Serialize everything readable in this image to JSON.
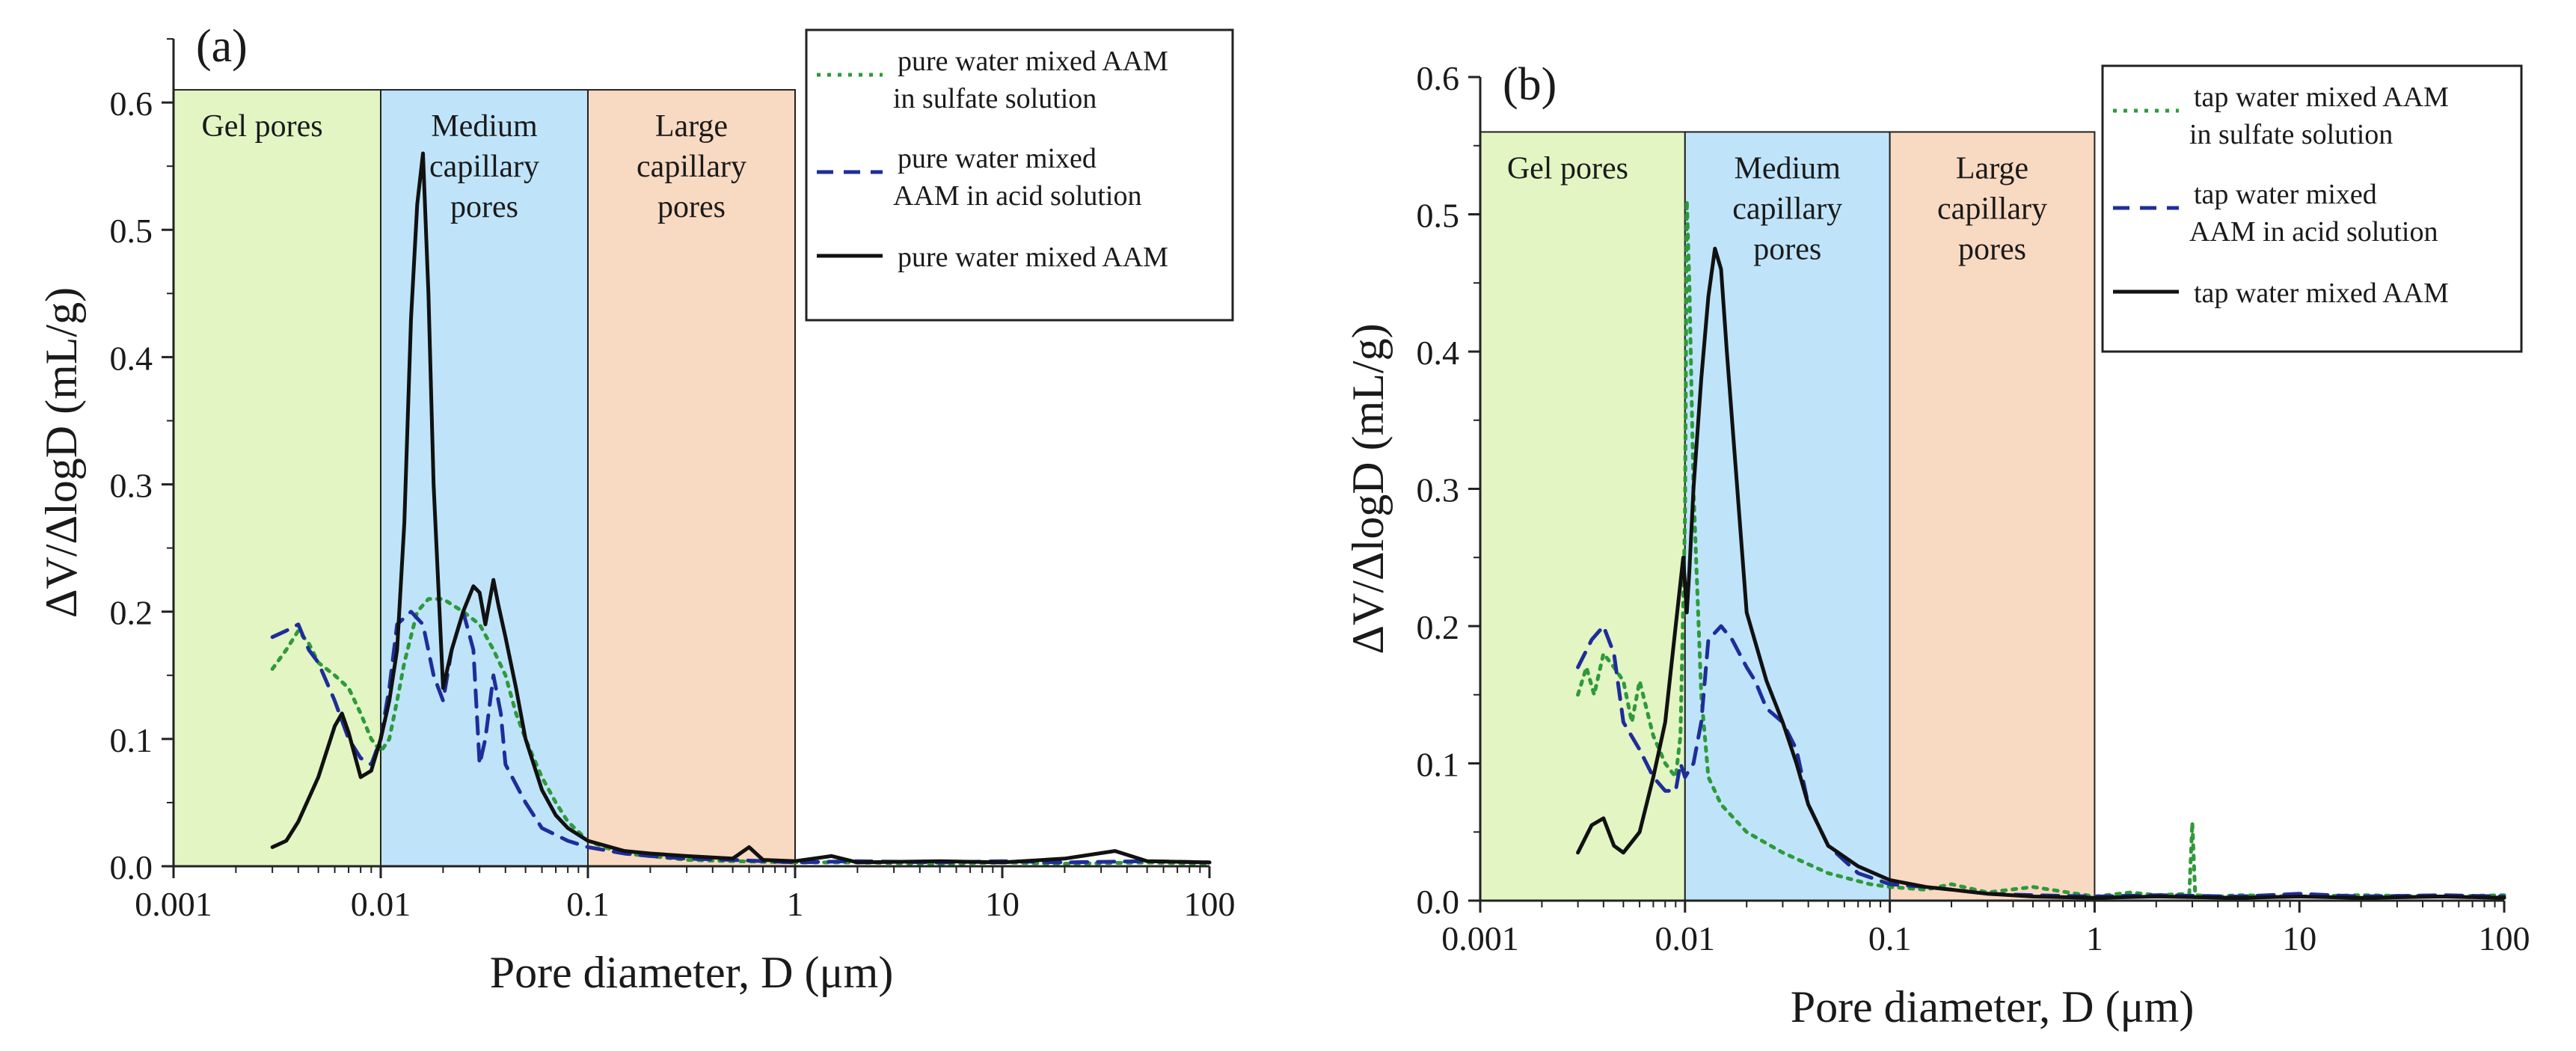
{
  "chart_data": [
    {
      "type": "line",
      "panel_label": "(a)",
      "title": "",
      "xlabel": "Pore diameter, D (μm)",
      "ylabel": "ΔV/ΔlogD (mL/g)",
      "xscale": "log",
      "xlim": [
        0.001,
        100
      ],
      "ylim": [
        0,
        0.65
      ],
      "xticks": [
        0.001,
        0.01,
        0.1,
        1,
        10,
        100
      ],
      "xtick_labels": [
        "0.001",
        "0.01",
        "0.1",
        "1",
        "10",
        "100"
      ],
      "yticks": [
        0.0,
        0.1,
        0.2,
        0.3,
        0.4,
        0.5,
        0.6
      ],
      "ytick_labels": [
        "0.0",
        "0.1",
        "0.2",
        "0.3",
        "0.4",
        "0.5",
        "0.6"
      ],
      "regions_top": 0.61,
      "regions": [
        {
          "label_lines": [
            "Gel pores"
          ],
          "x_range": [
            0.001,
            0.01
          ],
          "color": "#e2f5c3"
        },
        {
          "label_lines": [
            "Medium",
            "capillary",
            "pores"
          ],
          "x_range": [
            0.01,
            0.1
          ],
          "color": "#bfe4fa"
        },
        {
          "label_lines": [
            "Large",
            "capillary",
            "pores"
          ],
          "x_range": [
            0.1,
            1
          ],
          "color": "#f8d9c1"
        }
      ],
      "legend": "top-right",
      "series": [
        {
          "name": "pure water mixed AAM in sulfate solution",
          "legend_lines": [
            "pure water mixed AAM",
            "in sulfate solution"
          ],
          "style": "dotted",
          "color": "#2e9a3a",
          "x": [
            0.003,
            0.0035,
            0.004,
            0.0045,
            0.005,
            0.006,
            0.007,
            0.008,
            0.009,
            0.01,
            0.011,
            0.012,
            0.013,
            0.015,
            0.017,
            0.02,
            0.025,
            0.03,
            0.035,
            0.04,
            0.045,
            0.05,
            0.06,
            0.07,
            0.08,
            0.1,
            0.12,
            0.15,
            0.2,
            0.3,
            0.5,
            1,
            2,
            5,
            10,
            20,
            50,
            100
          ],
          "y": [
            0.155,
            0.17,
            0.185,
            0.175,
            0.16,
            0.15,
            0.14,
            0.12,
            0.1,
            0.09,
            0.1,
            0.13,
            0.16,
            0.2,
            0.21,
            0.21,
            0.2,
            0.19,
            0.17,
            0.15,
            0.12,
            0.1,
            0.07,
            0.05,
            0.035,
            0.02,
            0.015,
            0.01,
            0.008,
            0.005,
            0.004,
            0.003,
            0.003,
            0.002,
            0.003,
            0.002,
            0.003,
            0.002
          ]
        },
        {
          "name": "pure water mixed AAM in acid solution",
          "legend_lines": [
            "pure water mixed",
            "AAM in acid solution"
          ],
          "style": "dashed",
          "color": "#1f2d9a",
          "x": [
            0.003,
            0.0035,
            0.004,
            0.0045,
            0.005,
            0.006,
            0.007,
            0.008,
            0.009,
            0.01,
            0.011,
            0.012,
            0.014,
            0.016,
            0.018,
            0.02,
            0.022,
            0.025,
            0.028,
            0.03,
            0.032,
            0.035,
            0.038,
            0.04,
            0.05,
            0.06,
            0.08,
            0.1,
            0.15,
            0.2,
            0.3,
            0.5,
            1,
            2,
            5,
            10,
            20,
            50,
            100
          ],
          "y": [
            0.18,
            0.185,
            0.19,
            0.17,
            0.16,
            0.13,
            0.1,
            0.085,
            0.08,
            0.1,
            0.14,
            0.19,
            0.2,
            0.19,
            0.15,
            0.13,
            0.17,
            0.2,
            0.17,
            0.08,
            0.1,
            0.15,
            0.12,
            0.08,
            0.05,
            0.03,
            0.02,
            0.015,
            0.01,
            0.008,
            0.006,
            0.005,
            0.003,
            0.004,
            0.003,
            0.004,
            0.003,
            0.004,
            0.003
          ]
        },
        {
          "name": "pure water mixed AAM",
          "legend_lines": [
            "pure water mixed AAM"
          ],
          "style": "solid",
          "color": "#111111",
          "x": [
            0.003,
            0.0035,
            0.004,
            0.005,
            0.006,
            0.0065,
            0.007,
            0.008,
            0.009,
            0.01,
            0.011,
            0.012,
            0.013,
            0.014,
            0.015,
            0.016,
            0.017,
            0.018,
            0.02,
            0.022,
            0.025,
            0.028,
            0.03,
            0.032,
            0.035,
            0.037,
            0.04,
            0.045,
            0.05,
            0.06,
            0.07,
            0.08,
            0.1,
            0.15,
            0.2,
            0.3,
            0.5,
            0.6,
            0.7,
            1,
            1.5,
            2,
            5,
            10,
            20,
            35,
            50,
            100
          ],
          "y": [
            0.015,
            0.02,
            0.035,
            0.07,
            0.11,
            0.12,
            0.105,
            0.07,
            0.075,
            0.1,
            0.13,
            0.17,
            0.27,
            0.43,
            0.52,
            0.56,
            0.45,
            0.3,
            0.14,
            0.17,
            0.2,
            0.22,
            0.215,
            0.19,
            0.225,
            0.205,
            0.18,
            0.14,
            0.1,
            0.06,
            0.04,
            0.03,
            0.02,
            0.012,
            0.01,
            0.008,
            0.006,
            0.015,
            0.005,
            0.004,
            0.008,
            0.003,
            0.004,
            0.003,
            0.006,
            0.012,
            0.004,
            0.003
          ]
        }
      ]
    },
    {
      "type": "line",
      "panel_label": "(b)",
      "title": "",
      "xlabel": "Pore diameter, D (μm)",
      "ylabel": "ΔV/ΔlogD (mL/g)",
      "xscale": "log",
      "xlim": [
        0.001,
        100
      ],
      "ylim": [
        0,
        0.6
      ],
      "xticks": [
        0.001,
        0.01,
        0.1,
        1,
        10,
        100
      ],
      "xtick_labels": [
        "0.001",
        "0.01",
        "0.1",
        "1",
        "10",
        "100"
      ],
      "yticks": [
        0.0,
        0.1,
        0.2,
        0.3,
        0.4,
        0.5,
        0.6
      ],
      "ytick_labels": [
        "0.0",
        "0.1",
        "0.2",
        "0.3",
        "0.4",
        "0.5",
        "0.6"
      ],
      "regions_top": 0.56,
      "regions": [
        {
          "label_lines": [
            "Gel pores"
          ],
          "x_range": [
            0.001,
            0.01
          ],
          "color": "#e2f5c3"
        },
        {
          "label_lines": [
            "Medium",
            "capillary",
            "pores"
          ],
          "x_range": [
            0.01,
            0.1
          ],
          "color": "#bfe4fa"
        },
        {
          "label_lines": [
            "Large",
            "capillary",
            "pores"
          ],
          "x_range": [
            0.1,
            1
          ],
          "color": "#f8d9c1"
        }
      ],
      "legend": "top-right",
      "series": [
        {
          "name": "tap water mixed AAM in sulfate solution",
          "legend_lines": [
            "tap water mixed AAM",
            "in sulfate solution"
          ],
          "style": "dotted",
          "color": "#2e9a3a",
          "x": [
            0.003,
            0.0033,
            0.0036,
            0.004,
            0.0045,
            0.005,
            0.0055,
            0.006,
            0.007,
            0.008,
            0.009,
            0.0095,
            0.01,
            0.0102,
            0.0105,
            0.011,
            0.012,
            0.013,
            0.015,
            0.02,
            0.03,
            0.05,
            0.08,
            0.1,
            0.15,
            0.2,
            0.3,
            0.5,
            1,
            1.5,
            2,
            2.9,
            3,
            3.1,
            4,
            5,
            10,
            20,
            50,
            100
          ],
          "y": [
            0.15,
            0.17,
            0.15,
            0.18,
            0.17,
            0.16,
            0.13,
            0.16,
            0.12,
            0.1,
            0.09,
            0.12,
            0.28,
            0.51,
            0.45,
            0.3,
            0.15,
            0.09,
            0.07,
            0.05,
            0.035,
            0.02,
            0.012,
            0.01,
            0.008,
            0.012,
            0.006,
            0.01,
            0.003,
            0.006,
            0.004,
            0.005,
            0.057,
            0.004,
            0.003,
            0.004,
            0.003,
            0.004,
            0.003,
            0.004
          ]
        },
        {
          "name": "tap water mixed AAM in acid solution",
          "legend_lines": [
            "tap water mixed",
            "AAM in acid solution"
          ],
          "style": "dashed",
          "color": "#1f2d9a",
          "x": [
            0.003,
            0.0035,
            0.004,
            0.0045,
            0.005,
            0.006,
            0.007,
            0.008,
            0.009,
            0.0095,
            0.01,
            0.011,
            0.012,
            0.013,
            0.015,
            0.017,
            0.02,
            0.022,
            0.025,
            0.03,
            0.035,
            0.04,
            0.05,
            0.07,
            0.1,
            0.15,
            0.2,
            0.3,
            0.5,
            1,
            2,
            5,
            10,
            20,
            50,
            100
          ],
          "y": [
            0.17,
            0.19,
            0.2,
            0.18,
            0.13,
            0.11,
            0.09,
            0.08,
            0.08,
            0.1,
            0.09,
            0.1,
            0.13,
            0.19,
            0.2,
            0.19,
            0.17,
            0.16,
            0.14,
            0.13,
            0.11,
            0.07,
            0.04,
            0.02,
            0.012,
            0.01,
            0.008,
            0.005,
            0.004,
            0.003,
            0.004,
            0.003,
            0.005,
            0.003,
            0.004,
            0.003
          ]
        },
        {
          "name": "tap water mixed AAM",
          "legend_lines": [
            "tap water mixed AAM"
          ],
          "style": "solid",
          "color": "#111111",
          "x": [
            0.003,
            0.0035,
            0.004,
            0.0045,
            0.005,
            0.006,
            0.007,
            0.008,
            0.009,
            0.0098,
            0.0102,
            0.0105,
            0.011,
            0.012,
            0.013,
            0.014,
            0.015,
            0.016,
            0.018,
            0.02,
            0.025,
            0.03,
            0.035,
            0.04,
            0.05,
            0.07,
            0.1,
            0.15,
            0.2,
            0.3,
            0.5,
            1,
            2,
            5,
            10,
            20,
            50,
            100
          ],
          "y": [
            0.035,
            0.055,
            0.06,
            0.04,
            0.035,
            0.05,
            0.09,
            0.13,
            0.2,
            0.25,
            0.21,
            0.24,
            0.3,
            0.38,
            0.44,
            0.475,
            0.46,
            0.4,
            0.3,
            0.21,
            0.16,
            0.13,
            0.1,
            0.07,
            0.04,
            0.025,
            0.015,
            0.01,
            0.008,
            0.005,
            0.003,
            0.002,
            0.003,
            0.002,
            0.003,
            0.002,
            0.003,
            0.002
          ]
        }
      ]
    }
  ]
}
